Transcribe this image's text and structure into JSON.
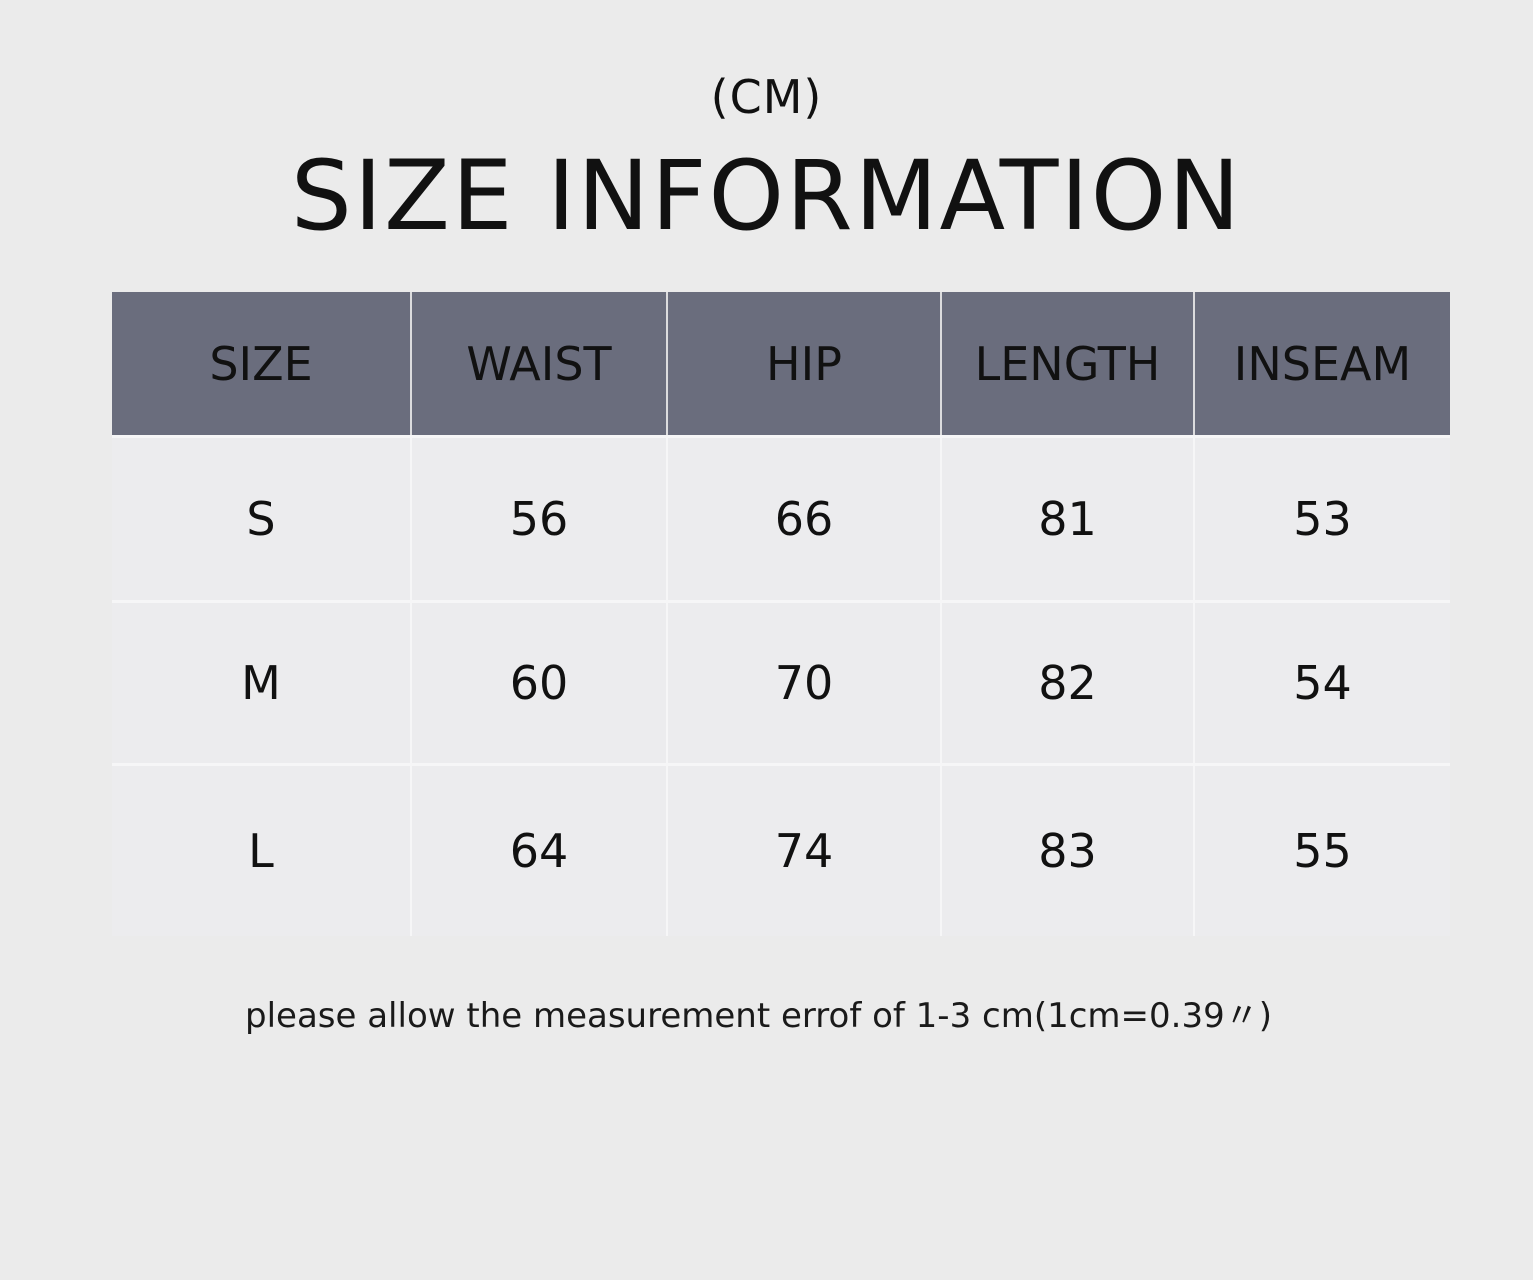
{
  "unit_label": "(CM)",
  "title": "SIZE INFORMATION",
  "table": {
    "headers": [
      "SIZE",
      "WAIST",
      "HIP",
      "LENGTH",
      "INSEAM"
    ],
    "rows": [
      [
        "S",
        "56",
        "66",
        "81",
        "53"
      ],
      [
        "M",
        "60",
        "70",
        "82",
        "54"
      ],
      [
        "L",
        "64",
        "74",
        "83",
        "55"
      ]
    ]
  },
  "note": "please allow the measurement errof of 1-3 cm(1cm=0.39〃)",
  "colors": {
    "header_bg": "#6a6d7d",
    "cell_bg": "#ececee",
    "page_bg": "#ebebeb"
  }
}
